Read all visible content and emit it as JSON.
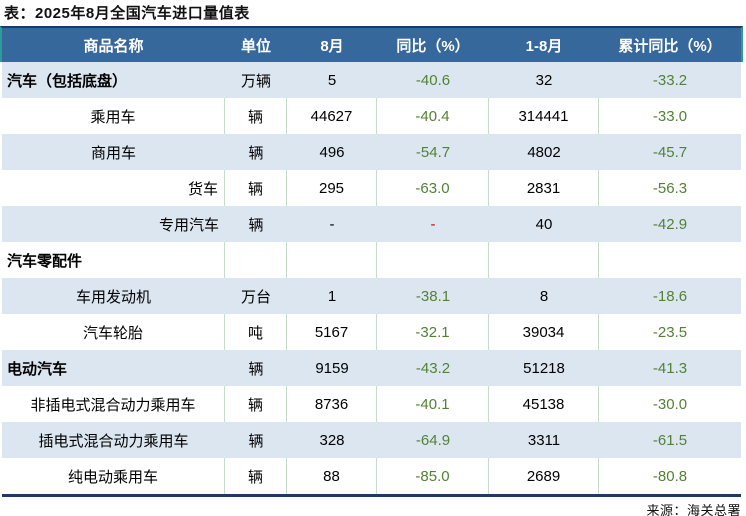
{
  "title": "表：2025年8月全国汽车进口量值表",
  "source": "来源：海关总署",
  "table": {
    "headers": [
      "商品名称",
      "单位",
      "8月",
      "同比（%）",
      "1-8月",
      "累计同比（%）"
    ],
    "rows": [
      {
        "name": "汽车（包括底盘）",
        "unit": "万辆",
        "aug": "5",
        "yoy": "-40.6",
        "jan_aug": "32",
        "cum_yoy": "-33.2",
        "style": "bold-left",
        "shade": true,
        "yoy_red": false
      },
      {
        "name": "乘用车",
        "unit": "辆",
        "aug": "44627",
        "yoy": "-40.4",
        "jan_aug": "314441",
        "cum_yoy": "-33.0",
        "style": "center",
        "shade": false,
        "yoy_red": false
      },
      {
        "name": "商用车",
        "unit": "辆",
        "aug": "496",
        "yoy": "-54.7",
        "jan_aug": "4802",
        "cum_yoy": "-45.7",
        "style": "center",
        "shade": true,
        "yoy_red": false
      },
      {
        "name": "货车",
        "unit": "辆",
        "aug": "295",
        "yoy": "-63.0",
        "jan_aug": "2831",
        "cum_yoy": "-56.3",
        "style": "right",
        "shade": false,
        "yoy_red": false
      },
      {
        "name": "专用汽车",
        "unit": "辆",
        "aug": "-",
        "yoy": "-",
        "jan_aug": "40",
        "cum_yoy": "-42.9",
        "style": "right",
        "shade": true,
        "yoy_red": true
      },
      {
        "name": "汽车零配件",
        "unit": "",
        "aug": "",
        "yoy": "",
        "jan_aug": "",
        "cum_yoy": "",
        "style": "bold-left",
        "shade": false,
        "yoy_red": false
      },
      {
        "name": "车用发动机",
        "unit": "万台",
        "aug": "1",
        "yoy": "-38.1",
        "jan_aug": "8",
        "cum_yoy": "-18.6",
        "style": "center",
        "shade": true,
        "yoy_red": false
      },
      {
        "name": "汽车轮胎",
        "unit": "吨",
        "aug": "5167",
        "yoy": "-32.1",
        "jan_aug": "39034",
        "cum_yoy": "-23.5",
        "style": "center",
        "shade": false,
        "yoy_red": false
      },
      {
        "name": "电动汽车",
        "unit": "辆",
        "aug": "9159",
        "yoy": "-43.2",
        "jan_aug": "51218",
        "cum_yoy": "-41.3",
        "style": "bold-left",
        "shade": true,
        "yoy_red": false
      },
      {
        "name": "非插电式混合动力乘用车",
        "unit": "辆",
        "aug": "8736",
        "yoy": "-40.1",
        "jan_aug": "45138",
        "cum_yoy": "-30.0",
        "style": "center",
        "shade": false,
        "yoy_red": false
      },
      {
        "name": "插电式混合动力乘用车",
        "unit": "辆",
        "aug": "328",
        "yoy": "-64.9",
        "jan_aug": "3311",
        "cum_yoy": "-61.5",
        "style": "center",
        "shade": true,
        "yoy_red": false
      },
      {
        "name": "纯电动乘用车",
        "unit": "辆",
        "aug": "88",
        "yoy": "-85.0",
        "jan_aug": "2689",
        "cum_yoy": "-80.8",
        "style": "center",
        "shade": false,
        "yoy_red": false
      }
    ]
  },
  "chart_data": {
    "type": "table",
    "title": "表：2025年8月全国汽车进口量值表",
    "columns": [
      "商品名称",
      "单位",
      "8月",
      "同比（%）",
      "1-8月",
      "累计同比（%）"
    ],
    "rows": [
      [
        "汽车（包括底盘）",
        "万辆",
        "5",
        "-40.6",
        "32",
        "-33.2"
      ],
      [
        "乘用车",
        "辆",
        "44627",
        "-40.4",
        "314441",
        "-33.0"
      ],
      [
        "商用车",
        "辆",
        "496",
        "-54.7",
        "4802",
        "-45.7"
      ],
      [
        "货车",
        "辆",
        "295",
        "-63.0",
        "2831",
        "-56.3"
      ],
      [
        "专用汽车",
        "辆",
        "-",
        "-",
        "40",
        "-42.9"
      ],
      [
        "汽车零配件",
        "",
        "",
        "",
        "",
        ""
      ],
      [
        "车用发动机",
        "万台",
        "1",
        "-38.1",
        "8",
        "-18.6"
      ],
      [
        "汽车轮胎",
        "吨",
        "5167",
        "-32.1",
        "39034",
        "-23.5"
      ],
      [
        "电动汽车",
        "辆",
        "9159",
        "-43.2",
        "51218",
        "-41.3"
      ],
      [
        "非插电式混合动力乘用车",
        "辆",
        "8736",
        "-40.1",
        "45138",
        "-30.0"
      ],
      [
        "插电式混合动力乘用车",
        "辆",
        "328",
        "-64.9",
        "3311",
        "-61.5"
      ],
      [
        "纯电动乘用车",
        "辆",
        "88",
        "-85.0",
        "2689",
        "-80.8"
      ]
    ],
    "source": "来源：海关总署"
  },
  "colors": {
    "header_bg": "#37689C",
    "header_text": "#FFFFFF",
    "navy": "#1F3864",
    "teal": "#2E9C96",
    "shade": "#DCE6F1",
    "green": "#538135",
    "red": "#CC0000",
    "border_green": "#C6DCC6"
  }
}
